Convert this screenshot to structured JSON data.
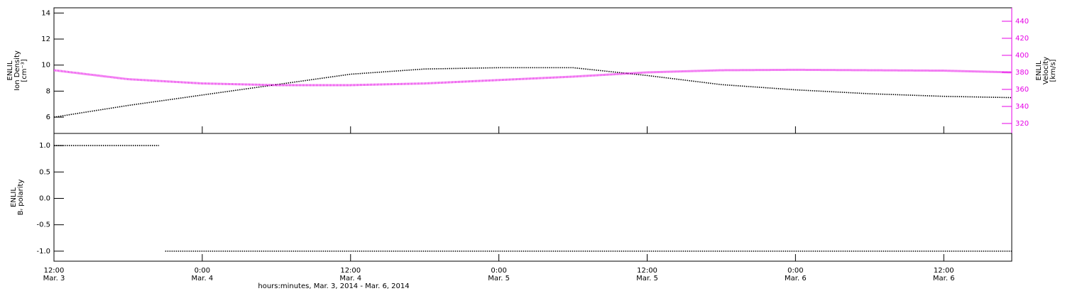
{
  "chart_data": [
    {
      "type": "line",
      "ylabel": [
        "ENLIL",
        "Ion Density",
        "[cm⁻³]"
      ],
      "y2label": [
        "ENLIL",
        "Velocity",
        "[km/s]"
      ],
      "y2color": "#e600e6",
      "x": [
        "2014-03-03T12:00",
        "2014-03-03T18:00",
        "2014-03-04T00:00",
        "2014-03-04T06:00",
        "2014-03-04T12:00",
        "2014-03-04T18:00",
        "2014-03-05T00:00",
        "2014-03-05T06:00",
        "2014-03-05T12:00",
        "2014-03-05T18:00",
        "2014-03-06T00:00",
        "2014-03-06T06:00",
        "2014-03-06T12:00",
        "2014-03-06T17:30"
      ],
      "series": [
        {
          "color": "#000000",
          "values": [
            6.0,
            6.9,
            7.7,
            8.5,
            9.3,
            9.7,
            9.8,
            9.8,
            9.2,
            8.5,
            8.1,
            7.8,
            7.6,
            7.5
          ]
        },
        {
          "color": "#e600e6",
          "axis": "y2",
          "values": [
            382.5,
            372,
            367,
            365,
            365,
            367,
            371,
            375,
            380,
            382.5,
            383,
            382.5,
            382,
            380
          ]
        }
      ],
      "xlim": [
        "2014-03-03T12:00",
        "2014-03-06T17:30"
      ],
      "xticks": [
        "2014-03-03T12:00",
        "2014-03-04T00:00",
        "2014-03-04T12:00",
        "2014-03-05T00:00",
        "2014-03-05T12:00",
        "2014-03-06T00:00",
        "2014-03-06T12:00"
      ],
      "ylim": [
        4.75,
        14.4
      ],
      "yticks": [
        6,
        8,
        10,
        12,
        14
      ],
      "y2lim": [
        308.3,
        455.8
      ],
      "y2ticks": [
        320,
        340,
        360,
        380,
        400,
        420,
        440
      ]
    },
    {
      "type": "line",
      "ylabel": [
        "ENLIL",
        "Bᵣ polarity"
      ],
      "xlabel": "hours:minutes, Mar.  3, 2014 - Mar.  6, 2014",
      "x": [
        "2014-03-03T12:00",
        "2014-03-03T16:00",
        "2014-03-03T20:30",
        "2014-03-03T20:45",
        "2014-03-03T21:00",
        "2014-03-04T00:00",
        "2014-03-04T12:00",
        "2014-03-05T00:00",
        "2014-03-05T12:00",
        "2014-03-06T00:00",
        "2014-03-06T12:00",
        "2014-03-06T17:30"
      ],
      "series": [
        {
          "color": "#000000",
          "values": [
            1,
            1,
            1,
            null,
            -1,
            -1,
            -1,
            -1,
            -1,
            -1,
            -1,
            -1
          ]
        }
      ],
      "xlim": [
        "2014-03-03T12:00",
        "2014-03-06T17:30"
      ],
      "xticks": [
        {
          "value": "2014-03-03T12:00",
          "label": [
            "12:00",
            "Mar. 3"
          ]
        },
        {
          "value": "2014-03-04T00:00",
          "label": [
            "0:00",
            "Mar. 4"
          ]
        },
        {
          "value": "2014-03-04T12:00",
          "label": [
            "12:00",
            "Mar. 4"
          ]
        },
        {
          "value": "2014-03-05T00:00",
          "label": [
            "0:00",
            "Mar. 5"
          ]
        },
        {
          "value": "2014-03-05T12:00",
          "label": [
            "12:00",
            "Mar. 5"
          ]
        },
        {
          "value": "2014-03-06T00:00",
          "label": [
            "0:00",
            "Mar. 6"
          ]
        },
        {
          "value": "2014-03-06T12:00",
          "label": [
            "12:00",
            "Mar. 6"
          ]
        }
      ],
      "ylim": [
        -1.19,
        1.23
      ],
      "yticks": [
        {
          "value": -1,
          "label": "-1.0"
        },
        {
          "value": -0.5,
          "label": "-0.5"
        },
        {
          "value": 0,
          "label": "0.0"
        },
        {
          "value": 0.5,
          "label": "0.5"
        },
        {
          "value": 1,
          "label": "1.0"
        }
      ]
    }
  ]
}
